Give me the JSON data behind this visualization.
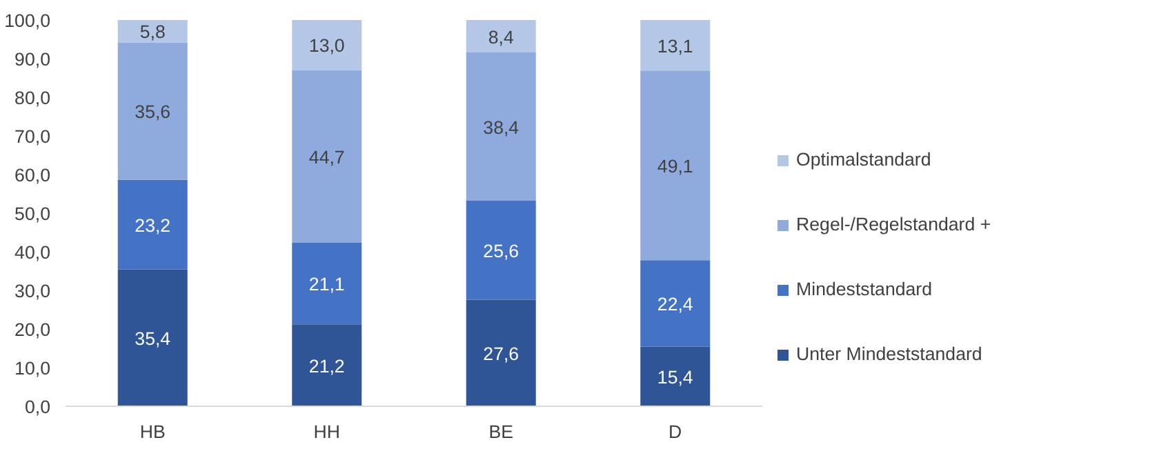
{
  "chart_data": {
    "type": "bar",
    "stacked": true,
    "categories": [
      "HB",
      "HH",
      "BE",
      "D"
    ],
    "series": [
      {
        "name": "Unter Mindeststandard",
        "color": "#2f5597",
        "values": [
          35.4,
          21.2,
          27.6,
          15.4
        ],
        "value_labels": [
          "35,4",
          "21,2",
          "27,6",
          "15,4"
        ]
      },
      {
        "name": "Mindeststandard",
        "color": "#4472c4",
        "values": [
          23.2,
          21.1,
          25.6,
          22.4
        ],
        "value_labels": [
          "23,2",
          "21,1",
          "25,6",
          "22,4"
        ]
      },
      {
        "name": "Regel-/Regelstandard +",
        "color": "#8faadc",
        "values": [
          35.6,
          44.7,
          38.4,
          49.1
        ],
        "value_labels": [
          "35,6",
          "44,7",
          "38,4",
          "49,1"
        ]
      },
      {
        "name": "Optimalstandard",
        "color": "#b4c7e7",
        "values": [
          5.8,
          13.0,
          8.4,
          13.1
        ],
        "value_labels": [
          "5,8",
          "13,0",
          "8,4",
          "13,1"
        ]
      }
    ],
    "ylim": [
      0,
      100
    ],
    "yticks": [
      {
        "value": 0,
        "label": "0,0"
      },
      {
        "value": 10,
        "label": "10,0"
      },
      {
        "value": 20,
        "label": "20,0"
      },
      {
        "value": 30,
        "label": "30,0"
      },
      {
        "value": 40,
        "label": "40,0"
      },
      {
        "value": 50,
        "label": "50,0"
      },
      {
        "value": 60,
        "label": "60,0"
      },
      {
        "value": 70,
        "label": "70,0"
      },
      {
        "value": 80,
        "label": "80,0"
      },
      {
        "value": 90,
        "label": "90,0"
      },
      {
        "value": 100,
        "label": "100,0"
      }
    ],
    "legend": "right"
  }
}
